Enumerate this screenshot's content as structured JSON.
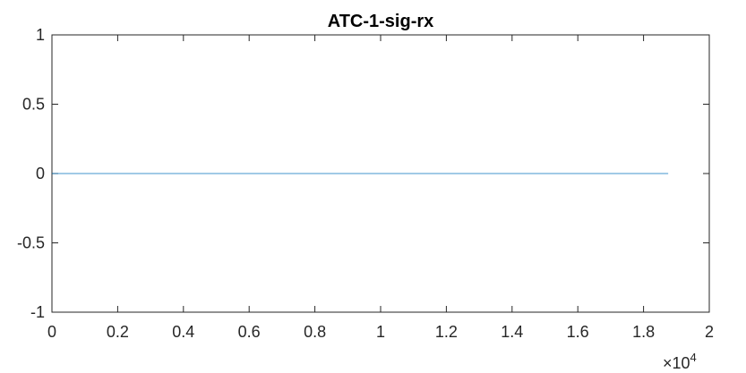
{
  "chart_data": {
    "type": "line",
    "title": "ATC-1-sig-rx",
    "xlabel": "",
    "ylabel": "",
    "xlim": [
      0,
      20000
    ],
    "ylim": [
      -1,
      1
    ],
    "x_tick_values": [
      0,
      2000,
      4000,
      6000,
      8000,
      10000,
      12000,
      14000,
      16000,
      18000,
      20000
    ],
    "x_tick_labels": [
      "0",
      "0.2",
      "0.4",
      "0.6",
      "0.8",
      "1",
      "1.2",
      "1.4",
      "1.6",
      "1.8",
      "2"
    ],
    "y_tick_values": [
      1,
      0.5,
      0,
      -0.5,
      -1
    ],
    "y_tick_labels": [
      "1",
      "0.5",
      "0",
      "-0.5",
      "-1"
    ],
    "x_exponent_base": "×10",
    "x_exponent_power": "4",
    "grid": false,
    "series": [
      {
        "x": [
          0,
          18750
        ],
        "y": [
          0,
          0
        ],
        "color": "#0072BD"
      }
    ]
  }
}
